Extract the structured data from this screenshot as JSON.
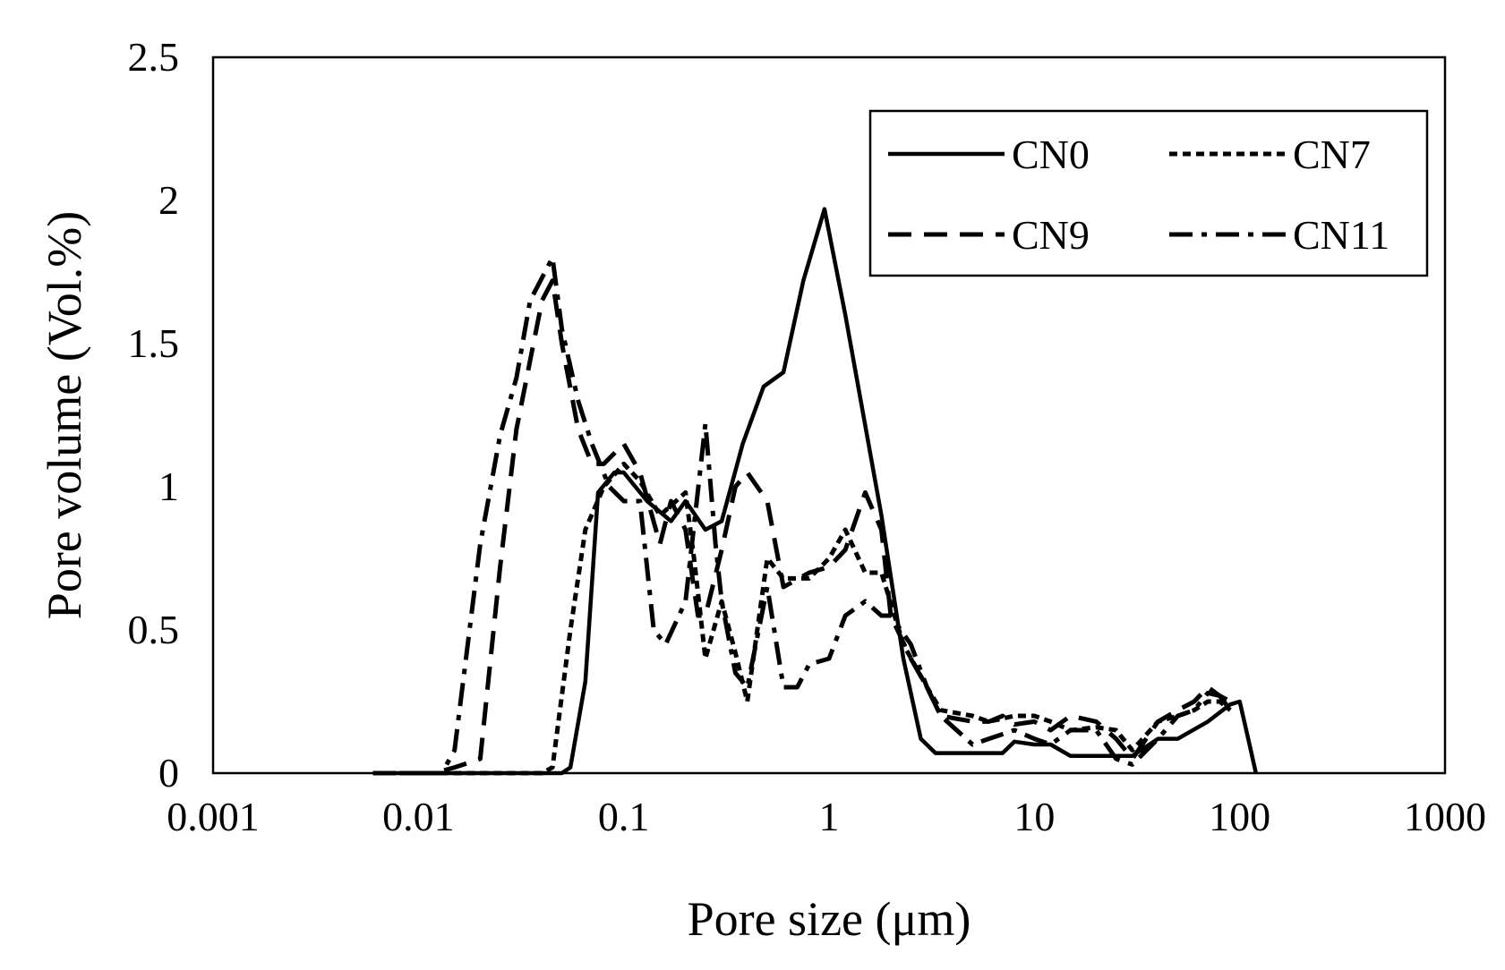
{
  "chart_data": {
    "type": "line",
    "title": "",
    "xlabel": "Pore size (μm)",
    "ylabel": "Pore volume (Vol.%)",
    "x_scale": "log",
    "xlim": [
      0.001,
      1000
    ],
    "ylim": [
      0,
      2.5
    ],
    "x_ticks": [
      "0.001",
      "0.01",
      "0.1",
      "1",
      "10",
      "100",
      "1000"
    ],
    "y_ticks": [
      "0",
      "0.5",
      "1",
      "1.5",
      "2",
      "2.5"
    ],
    "grid": false,
    "legend_position": "top-right",
    "series": [
      {
        "name": "CN0",
        "style": "solid",
        "points": [
          [
            0.006,
            0
          ],
          [
            0.05,
            0
          ],
          [
            0.055,
            0.02
          ],
          [
            0.065,
            0.32
          ],
          [
            0.075,
            0.98
          ],
          [
            0.09,
            1.05
          ],
          [
            0.1,
            1.05
          ],
          [
            0.13,
            0.95
          ],
          [
            0.17,
            0.88
          ],
          [
            0.2,
            0.95
          ],
          [
            0.25,
            0.85
          ],
          [
            0.3,
            0.88
          ],
          [
            0.38,
            1.15
          ],
          [
            0.48,
            1.35
          ],
          [
            0.6,
            1.4
          ],
          [
            0.75,
            1.72
          ],
          [
            0.95,
            1.97
          ],
          [
            1.2,
            1.6
          ],
          [
            1.8,
            0.9
          ],
          [
            2.3,
            0.4
          ],
          [
            2.8,
            0.12
          ],
          [
            3.3,
            0.07
          ],
          [
            5,
            0.07
          ],
          [
            7,
            0.07
          ],
          [
            8,
            0.11
          ],
          [
            10,
            0.1
          ],
          [
            12,
            0.1
          ],
          [
            15,
            0.06
          ],
          [
            22,
            0.06
          ],
          [
            30,
            0.06
          ],
          [
            40,
            0.12
          ],
          [
            50,
            0.12
          ],
          [
            70,
            0.18
          ],
          [
            90,
            0.24
          ],
          [
            100,
            0.25
          ],
          [
            110,
            0.12
          ],
          [
            120,
            0
          ]
        ]
      },
      {
        "name": "CN7",
        "style": "short-dash",
        "points": [
          [
            0.006,
            0
          ],
          [
            0.04,
            0
          ],
          [
            0.045,
            0.02
          ],
          [
            0.055,
            0.5
          ],
          [
            0.065,
            0.85
          ],
          [
            0.08,
            1.0
          ],
          [
            0.1,
            1.08
          ],
          [
            0.12,
            1.02
          ],
          [
            0.15,
            0.9
          ],
          [
            0.2,
            0.98
          ],
          [
            0.22,
            0.75
          ],
          [
            0.25,
            0.4
          ],
          [
            0.3,
            0.6
          ],
          [
            0.35,
            0.42
          ],
          [
            0.4,
            0.25
          ],
          [
            0.5,
            0.75
          ],
          [
            0.6,
            0.68
          ],
          [
            0.8,
            0.68
          ],
          [
            1.0,
            0.75
          ],
          [
            1.2,
            0.85
          ],
          [
            1.5,
            0.7
          ],
          [
            1.8,
            0.7
          ],
          [
            2.3,
            0.45
          ],
          [
            3,
            0.3
          ],
          [
            3.5,
            0.22
          ],
          [
            5,
            0.2
          ],
          [
            6,
            0.18
          ],
          [
            8,
            0.2
          ],
          [
            10,
            0.2
          ],
          [
            12,
            0.18
          ],
          [
            15,
            0.15
          ],
          [
            20,
            0.16
          ],
          [
            25,
            0.15
          ],
          [
            30,
            0.08
          ],
          [
            40,
            0.18
          ],
          [
            50,
            0.2
          ],
          [
            60,
            0.22
          ],
          [
            70,
            0.25
          ],
          [
            80,
            0.25
          ],
          [
            90,
            0.22
          ]
        ]
      },
      {
        "name": "CN9",
        "style": "long-dash",
        "points": [
          [
            0.006,
            0
          ],
          [
            0.012,
            0
          ],
          [
            0.015,
            0.02
          ],
          [
            0.02,
            0.05
          ],
          [
            0.025,
            0.72
          ],
          [
            0.03,
            1.2
          ],
          [
            0.04,
            1.65
          ],
          [
            0.045,
            1.72
          ],
          [
            0.05,
            1.5
          ],
          [
            0.06,
            1.2
          ],
          [
            0.07,
            1.08
          ],
          [
            0.08,
            1.08
          ],
          [
            0.1,
            1.15
          ],
          [
            0.12,
            1.05
          ],
          [
            0.15,
            0.8
          ],
          [
            0.17,
            0.95
          ],
          [
            0.2,
            0.85
          ],
          [
            0.23,
            0.55
          ],
          [
            0.25,
            0.55
          ],
          [
            0.3,
            0.78
          ],
          [
            0.35,
            1.0
          ],
          [
            0.4,
            1.05
          ],
          [
            0.5,
            0.95
          ],
          [
            0.6,
            0.65
          ],
          [
            0.8,
            0.7
          ],
          [
            1.0,
            0.72
          ],
          [
            1.2,
            0.78
          ],
          [
            1.5,
            0.98
          ],
          [
            1.8,
            0.85
          ],
          [
            2.0,
            0.55
          ],
          [
            2.5,
            0.4
          ],
          [
            3,
            0.3
          ],
          [
            3.5,
            0.2
          ],
          [
            5,
            0.18
          ],
          [
            6,
            0.18
          ],
          [
            7,
            0.2
          ],
          [
            8,
            0.17
          ],
          [
            10,
            0.18
          ],
          [
            12,
            0.15
          ],
          [
            15,
            0.2
          ],
          [
            20,
            0.18
          ],
          [
            25,
            0.12
          ],
          [
            30,
            0.05
          ],
          [
            40,
            0.18
          ],
          [
            50,
            0.22
          ],
          [
            60,
            0.25
          ],
          [
            70,
            0.3
          ],
          [
            80,
            0.27
          ],
          [
            90,
            0.22
          ]
        ]
      },
      {
        "name": "CN11",
        "style": "dash-dot",
        "points": [
          [
            0.006,
            0
          ],
          [
            0.013,
            0
          ],
          [
            0.015,
            0.08
          ],
          [
            0.02,
            0.8
          ],
          [
            0.025,
            1.18
          ],
          [
            0.03,
            1.38
          ],
          [
            0.035,
            1.65
          ],
          [
            0.045,
            1.8
          ],
          [
            0.05,
            1.55
          ],
          [
            0.06,
            1.3
          ],
          [
            0.07,
            1.15
          ],
          [
            0.085,
            1.0
          ],
          [
            0.1,
            0.95
          ],
          [
            0.12,
            0.95
          ],
          [
            0.14,
            0.5
          ],
          [
            0.16,
            0.45
          ],
          [
            0.2,
            0.6
          ],
          [
            0.25,
            1.22
          ],
          [
            0.28,
            0.8
          ],
          [
            0.3,
            0.6
          ],
          [
            0.35,
            0.35
          ],
          [
            0.4,
            0.3
          ],
          [
            0.5,
            0.65
          ],
          [
            0.6,
            0.3
          ],
          [
            0.7,
            0.3
          ],
          [
            0.8,
            0.38
          ],
          [
            1.0,
            0.4
          ],
          [
            1.2,
            0.55
          ],
          [
            1.5,
            0.6
          ],
          [
            1.8,
            0.55
          ],
          [
            2.0,
            0.55
          ],
          [
            2.5,
            0.45
          ],
          [
            3,
            0.3
          ],
          [
            3.5,
            0.2
          ],
          [
            5,
            0.1
          ],
          [
            6,
            0.12
          ],
          [
            8,
            0.15
          ],
          [
            10,
            0.12
          ],
          [
            12,
            0.1
          ],
          [
            15,
            0.15
          ],
          [
            20,
            0.15
          ],
          [
            25,
            0.05
          ],
          [
            30,
            0.03
          ],
          [
            40,
            0.12
          ],
          [
            50,
            0.2
          ],
          [
            60,
            0.22
          ],
          [
            70,
            0.28
          ],
          [
            80,
            0.27
          ],
          [
            90,
            0.25
          ]
        ]
      }
    ]
  }
}
